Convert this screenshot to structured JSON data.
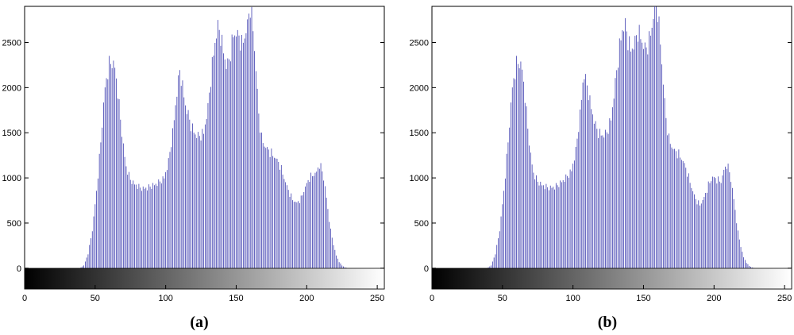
{
  "chart_data": [
    {
      "type": "bar",
      "caption": "(a)",
      "x": {
        "start": 0,
        "end": 255,
        "step": 1
      },
      "xlim": [
        0,
        255
      ],
      "ylim": [
        -230,
        2900
      ],
      "xticks": [
        0,
        50,
        100,
        150,
        200,
        250
      ],
      "yticks": [
        0,
        500,
        1000,
        1500,
        2000,
        2500
      ],
      "grid": false,
      "colorbar": "grayscale 0-255",
      "bar_color": "#3f3fb0",
      "envelope": [
        [
          39,
          0
        ],
        [
          42,
          30
        ],
        [
          45,
          160
        ],
        [
          48,
          420
        ],
        [
          51,
          850
        ],
        [
          54,
          1400
        ],
        [
          57,
          2000
        ],
        [
          60,
          2260
        ],
        [
          62,
          2280
        ],
        [
          64,
          2220
        ],
        [
          66,
          1950
        ],
        [
          68,
          1650
        ],
        [
          70,
          1350
        ],
        [
          72,
          1120
        ],
        [
          75,
          980
        ],
        [
          78,
          930
        ],
        [
          81,
          900
        ],
        [
          84,
          880
        ],
        [
          87,
          890
        ],
        [
          90,
          910
        ],
        [
          93,
          930
        ],
        [
          96,
          960
        ],
        [
          99,
          1000
        ],
        [
          102,
          1180
        ],
        [
          105,
          1500
        ],
        [
          108,
          1950
        ],
        [
          110,
          2190
        ],
        [
          112,
          2010
        ],
        [
          114,
          1800
        ],
        [
          116,
          1700
        ],
        [
          118,
          1580
        ],
        [
          121,
          1480
        ],
        [
          124,
          1460
        ],
        [
          127,
          1500
        ],
        [
          130,
          1780
        ],
        [
          133,
          2250
        ],
        [
          135,
          2500
        ],
        [
          137,
          2680
        ],
        [
          139,
          2570
        ],
        [
          141,
          2400
        ],
        [
          143,
          2240
        ],
        [
          145,
          2300
        ],
        [
          148,
          2580
        ],
        [
          150,
          2600
        ],
        [
          152,
          2560
        ],
        [
          154,
          2480
        ],
        [
          156,
          2560
        ],
        [
          158,
          2700
        ],
        [
          160,
          2900
        ],
        [
          162,
          2650
        ],
        [
          164,
          2200
        ],
        [
          166,
          1700
        ],
        [
          168,
          1440
        ],
        [
          170,
          1360
        ],
        [
          172,
          1320
        ],
        [
          175,
          1270
        ],
        [
          178,
          1220
        ],
        [
          181,
          1140
        ],
        [
          184,
          1000
        ],
        [
          187,
          860
        ],
        [
          190,
          760
        ],
        [
          193,
          720
        ],
        [
          196,
          770
        ],
        [
          199,
          900
        ],
        [
          202,
          1000
        ],
        [
          205,
          1040
        ],
        [
          207,
          1060
        ],
        [
          209,
          1150
        ],
        [
          211,
          1080
        ],
        [
          213,
          900
        ],
        [
          215,
          650
        ],
        [
          217,
          420
        ],
        [
          219,
          260
        ],
        [
          221,
          140
        ],
        [
          223,
          70
        ],
        [
          225,
          30
        ],
        [
          227,
          10
        ],
        [
          229,
          0
        ]
      ]
    },
    {
      "type": "bar",
      "caption": "(b)",
      "x": {
        "start": 0,
        "end": 255,
        "step": 1
      },
      "xlim": [
        0,
        255
      ],
      "ylim": [
        -230,
        2900
      ],
      "xticks": [
        0,
        50,
        100,
        150,
        200,
        250
      ],
      "yticks": [
        0,
        500,
        1000,
        1500,
        2000,
        2500
      ],
      "grid": false,
      "colorbar": "grayscale 0-255",
      "bar_color": "#3f3fb0",
      "envelope": [
        [
          39,
          0
        ],
        [
          42,
          30
        ],
        [
          45,
          160
        ],
        [
          48,
          420
        ],
        [
          51,
          850
        ],
        [
          54,
          1400
        ],
        [
          57,
          2000
        ],
        [
          60,
          2260
        ],
        [
          62,
          2280
        ],
        [
          64,
          2200
        ],
        [
          66,
          1900
        ],
        [
          68,
          1550
        ],
        [
          70,
          1250
        ],
        [
          72,
          1050
        ],
        [
          75,
          960
        ],
        [
          78,
          920
        ],
        [
          81,
          900
        ],
        [
          84,
          890
        ],
        [
          87,
          900
        ],
        [
          90,
          930
        ],
        [
          93,
          970
        ],
        [
          96,
          1020
        ],
        [
          99,
          1080
        ],
        [
          102,
          1300
        ],
        [
          105,
          1700
        ],
        [
          107,
          2050
        ],
        [
          108,
          2150
        ],
        [
          110,
          2020
        ],
        [
          112,
          1850
        ],
        [
          114,
          1700
        ],
        [
          116,
          1580
        ],
        [
          118,
          1500
        ],
        [
          121,
          1470
        ],
        [
          124,
          1500
        ],
        [
          127,
          1650
        ],
        [
          130,
          2050
        ],
        [
          133,
          2450
        ],
        [
          135,
          2640
        ],
        [
          137,
          2700
        ],
        [
          139,
          2520
        ],
        [
          141,
          2420
        ],
        [
          143,
          2460
        ],
        [
          146,
          2620
        ],
        [
          148,
          2560
        ],
        [
          150,
          2460
        ],
        [
          152,
          2430
        ],
        [
          154,
          2520
        ],
        [
          156,
          2680
        ],
        [
          158,
          2900
        ],
        [
          160,
          2850
        ],
        [
          162,
          2500
        ],
        [
          164,
          2050
        ],
        [
          166,
          1650
        ],
        [
          168,
          1430
        ],
        [
          170,
          1350
        ],
        [
          172,
          1300
        ],
        [
          175,
          1260
        ],
        [
          178,
          1190
        ],
        [
          181,
          1060
        ],
        [
          184,
          900
        ],
        [
          187,
          760
        ],
        [
          190,
          700
        ],
        [
          193,
          780
        ],
        [
          196,
          920
        ],
        [
          199,
          1010
        ],
        [
          202,
          980
        ],
        [
          205,
          960
        ],
        [
          207,
          1080
        ],
        [
          209,
          1150
        ],
        [
          211,
          1070
        ],
        [
          213,
          880
        ],
        [
          215,
          640
        ],
        [
          217,
          400
        ],
        [
          219,
          240
        ],
        [
          221,
          120
        ],
        [
          223,
          60
        ],
        [
          225,
          25
        ],
        [
          227,
          8
        ],
        [
          229,
          0
        ]
      ]
    }
  ]
}
